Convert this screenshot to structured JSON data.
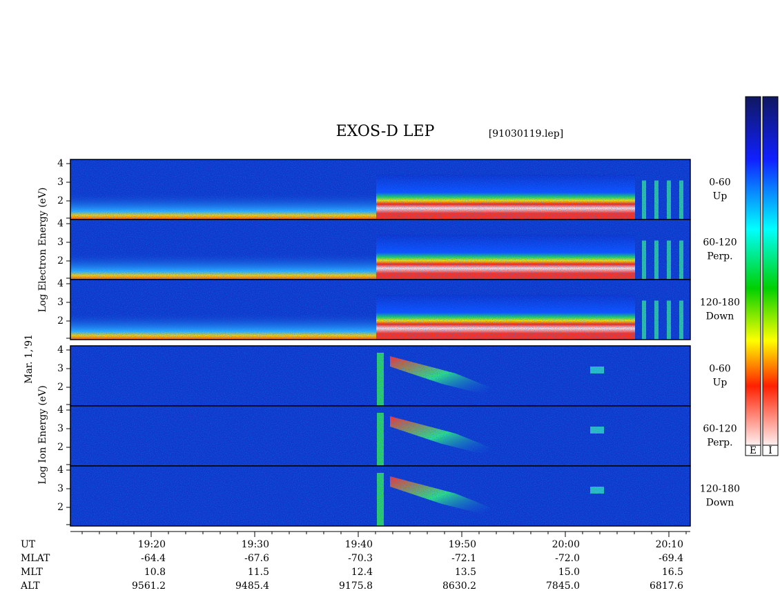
{
  "title": "EXOS-D LEP",
  "file": "[91030119.lep]",
  "date_label": "Mar. 1,'91",
  "electron": {
    "axis_label": "Log Electron Energy (eV)",
    "panels": [
      {
        "range": "0-60",
        "direction": "Up",
        "ticks": [
          "4",
          "3",
          "2"
        ]
      },
      {
        "range": "60-120",
        "direction": "Perp.",
        "ticks": [
          "4",
          "3",
          "2"
        ]
      },
      {
        "range": "120-180",
        "direction": "Down",
        "ticks": [
          "4",
          "3",
          "2"
        ]
      }
    ]
  },
  "ion": {
    "axis_label": "Log Ion Energy (eV)",
    "panels": [
      {
        "range": "0-60",
        "direction": "Up",
        "ticks": [
          "4",
          "3",
          "2"
        ]
      },
      {
        "range": "60-120",
        "direction": "Perp.",
        "ticks": [
          "4",
          "3",
          "2"
        ]
      },
      {
        "range": "120-180",
        "direction": "Down",
        "ticks": [
          "4",
          "3",
          "2"
        ]
      }
    ]
  },
  "colorbar": {
    "labels": [
      "E",
      "I"
    ]
  },
  "ephemeris": {
    "row_labels": [
      "UT",
      "MLAT",
      "MLT",
      "ALT"
    ],
    "columns": [
      [
        "19:20",
        "-64.4",
        "10.8",
        "9561.2"
      ],
      [
        "19:30",
        "-67.6",
        "11.5",
        "9485.4"
      ],
      [
        "19:40",
        "-70.3",
        "12.4",
        "9175.8"
      ],
      [
        "19:50",
        "-72.1",
        "13.5",
        "8630.2"
      ],
      [
        "20:00",
        "-72.0",
        "15.0",
        "7845.0"
      ],
      [
        "20:10",
        "-69.4",
        "16.5",
        "6817.6"
      ]
    ]
  }
}
